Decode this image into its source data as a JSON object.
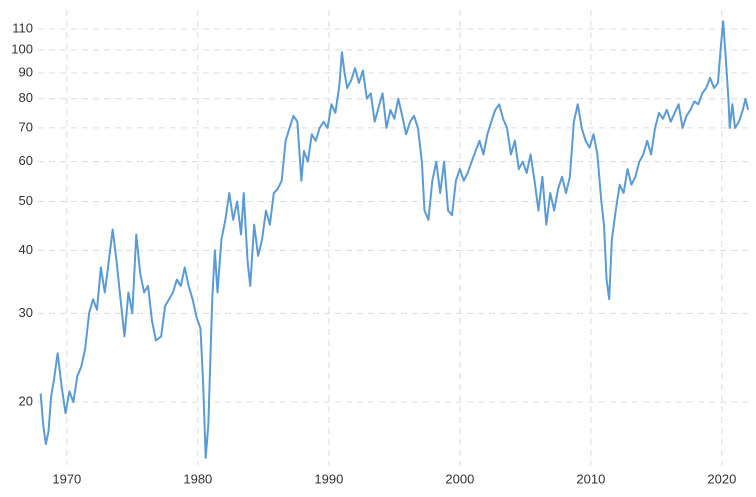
{
  "chart_data": {
    "type": "line",
    "yscale": "log",
    "grid": true,
    "color": "#5b9bd5",
    "xlim": [
      1967.8,
      2022.3
    ],
    "xticks": [
      1970,
      1980,
      1990,
      2000,
      2010,
      2020
    ],
    "ylim": [
      15,
      120
    ],
    "yticks": [
      20,
      30,
      40,
      50,
      60,
      70,
      80,
      90,
      100,
      110
    ],
    "x": [
      1968.0,
      1968.2,
      1968.4,
      1968.6,
      1968.8,
      1969.0,
      1969.3,
      1969.6,
      1969.9,
      1970.2,
      1970.5,
      1970.8,
      1971.1,
      1971.4,
      1971.7,
      1972.0,
      1972.3,
      1972.6,
      1972.9,
      1973.2,
      1973.5,
      1973.8,
      1974.1,
      1974.4,
      1974.7,
      1975.0,
      1975.3,
      1975.6,
      1975.9,
      1976.2,
      1976.5,
      1976.8,
      1977.2,
      1977.5,
      1977.8,
      1978.1,
      1978.4,
      1978.7,
      1979.0,
      1979.3,
      1979.6,
      1979.9,
      1980.2,
      1980.4,
      1980.6,
      1980.8,
      1981.1,
      1981.3,
      1981.5,
      1981.8,
      1982.1,
      1982.4,
      1982.7,
      1983.0,
      1983.3,
      1983.5,
      1983.8,
      1984.0,
      1984.3,
      1984.6,
      1984.9,
      1985.2,
      1985.5,
      1985.8,
      1986.1,
      1986.4,
      1986.7,
      1987.0,
      1987.3,
      1987.6,
      1987.9,
      1988.1,
      1988.4,
      1988.7,
      1989.0,
      1989.3,
      1989.6,
      1989.9,
      1990.2,
      1990.5,
      1990.8,
      1991.0,
      1991.2,
      1991.4,
      1991.7,
      1992.0,
      1992.3,
      1992.6,
      1992.9,
      1993.2,
      1993.5,
      1993.8,
      1994.1,
      1994.4,
      1994.7,
      1995.0,
      1995.3,
      1995.6,
      1995.9,
      1996.2,
      1996.5,
      1996.8,
      1997.1,
      1997.3,
      1997.6,
      1997.9,
      1998.2,
      1998.5,
      1998.8,
      1999.1,
      1999.4,
      1999.7,
      2000.0,
      2000.3,
      2000.6,
      2000.9,
      2001.2,
      2001.5,
      2001.8,
      2002.1,
      2002.4,
      2002.7,
      2003.0,
      2003.3,
      2003.6,
      2003.9,
      2004.2,
      2004.5,
      2004.8,
      2005.1,
      2005.4,
      2005.7,
      2006.0,
      2006.3,
      2006.6,
      2006.9,
      2007.2,
      2007.5,
      2007.8,
      2008.1,
      2008.4,
      2008.7,
      2009.0,
      2009.3,
      2009.6,
      2009.9,
      2010.2,
      2010.5,
      2010.8,
      2011.0,
      2011.2,
      2011.4,
      2011.6,
      2011.9,
      2012.2,
      2012.5,
      2012.8,
      2013.1,
      2013.4,
      2013.7,
      2014.0,
      2014.3,
      2014.6,
      2014.9,
      2015.2,
      2015.5,
      2015.8,
      2016.1,
      2016.4,
      2016.7,
      2017.0,
      2017.3,
      2017.6,
      2017.9,
      2018.2,
      2018.5,
      2018.8,
      2019.1,
      2019.4,
      2019.7,
      2019.9,
      2020.1,
      2020.3,
      2020.5,
      2020.6,
      2020.8,
      2021.0,
      2021.3,
      2021.6,
      2021.8,
      2022.0
    ],
    "values": [
      20.8,
      18,
      16.5,
      17.5,
      20.5,
      22,
      25,
      21.5,
      19,
      21,
      20,
      22.5,
      23.5,
      25.5,
      30,
      32,
      30.5,
      37,
      33,
      38,
      44,
      38,
      32,
      27,
      33,
      30,
      43,
      36,
      33,
      34,
      29,
      26.5,
      27,
      31,
      32,
      33,
      35,
      34,
      37,
      34,
      32,
      29.5,
      28,
      22,
      15.5,
      18,
      32,
      40,
      33,
      42,
      46,
      52,
      46,
      50,
      43,
      52,
      38,
      34,
      45,
      39,
      42,
      48,
      45,
      52,
      53,
      55,
      66,
      70,
      74,
      72,
      55,
      63,
      60,
      68,
      66,
      70,
      72,
      70,
      78,
      75,
      85,
      99,
      90,
      84,
      87,
      92,
      86,
      91,
      80,
      82,
      72,
      77,
      82,
      70,
      76,
      73,
      80,
      74,
      68,
      72,
      74,
      70,
      60,
      48,
      46,
      55,
      60,
      52,
      60,
      48,
      47,
      55,
      58,
      55,
      57,
      60,
      63,
      66,
      62,
      68,
      72,
      76,
      78,
      73,
      70,
      62,
      66,
      58,
      60,
      57,
      62,
      55,
      48,
      56,
      45,
      52,
      48,
      53,
      56,
      52,
      56,
      72,
      78,
      70,
      66,
      64,
      68,
      62,
      50,
      45,
      35,
      32,
      42,
      48,
      54,
      52,
      58,
      54,
      56,
      60,
      62,
      66,
      62,
      70,
      75,
      73,
      76,
      72,
      75,
      78,
      70,
      74,
      76,
      79,
      78,
      82,
      84,
      88,
      84,
      86,
      100,
      114,
      96,
      80,
      70,
      78,
      70,
      72,
      76,
      80,
      76
    ]
  }
}
